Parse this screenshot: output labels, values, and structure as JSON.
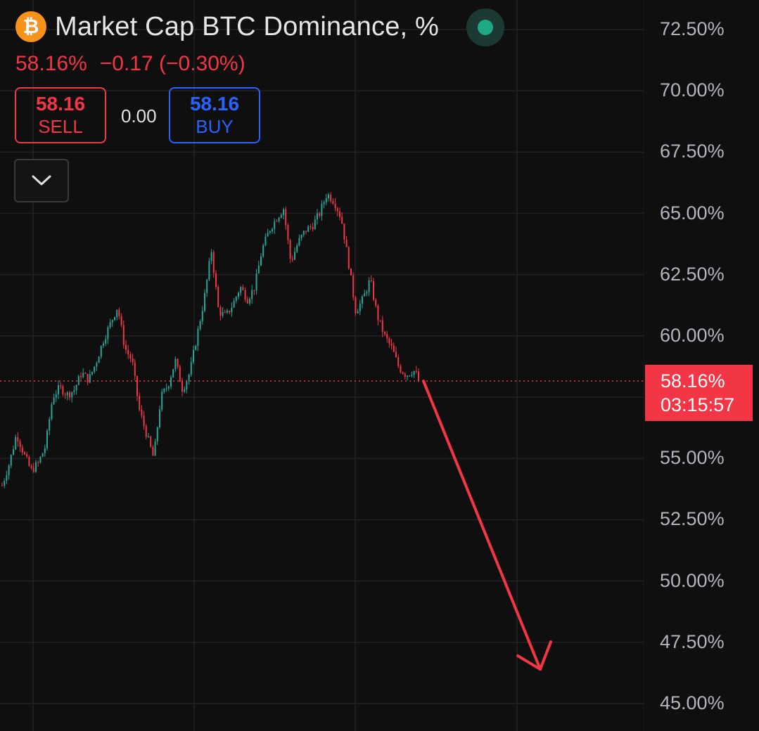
{
  "header": {
    "logo_icon": "bitcoin-icon",
    "logo_symbol": "₿",
    "title": "Market Cap BTC Dominance, %",
    "status_icon": "market-open-dot-icon"
  },
  "quote": {
    "last": "58.16%",
    "change": "−0.17 (−0.30%)"
  },
  "trade": {
    "sell_price": "58.16",
    "sell_label": "SELL",
    "spread": "0.00",
    "buy_price": "58.16",
    "buy_label": "BUY",
    "collapse_icon": "chevron-down-icon"
  },
  "last_price_tag": {
    "value": "58.16%",
    "countdown": "03:15:57"
  },
  "colors": {
    "up": "#26a69a",
    "down": "#f23645",
    "buy": "#2962ff",
    "background": "#0f0f0f"
  },
  "chart_data": {
    "type": "line",
    "title": "Market Cap BTC Dominance, %",
    "ylim": [
      44,
      73
    ],
    "y_ticks": [
      "72.50%",
      "70.00%",
      "67.50%",
      "65.00%",
      "62.50%",
      "60.00%",
      "55.00%",
      "52.50%",
      "50.00%",
      "47.50%",
      "45.00%"
    ],
    "grid": true,
    "series": [
      {
        "values": [
          53.9,
          54.8,
          56.0,
          55.2,
          54.5,
          54.8,
          55.5,
          57.5,
          57.9,
          57.6,
          57.8,
          58.5,
          58.2,
          58.9,
          59.8,
          60.5,
          61.2,
          59.5,
          59.0,
          57.0,
          56.0,
          55.0,
          57.5,
          58.0,
          59.0,
          57.8,
          58.5,
          60.0,
          61.5,
          63.5,
          61.0,
          60.8,
          61.3,
          62.0,
          61.5,
          62.0,
          63.5,
          64.3,
          64.8,
          65.2,
          63.0,
          63.8,
          64.3,
          64.5,
          65.0,
          65.8,
          65.5,
          64.8,
          63.0,
          61.0,
          61.5,
          62.3,
          60.8,
          60.0,
          59.5,
          58.7,
          58.4,
          58.6,
          58.16
        ]
      }
    ],
    "last_value": 58.16,
    "annotation": {
      "type": "arrow",
      "from": [
        59,
        58.16
      ],
      "to": [
        90,
        46.4
      ],
      "color": "#f23645"
    }
  }
}
